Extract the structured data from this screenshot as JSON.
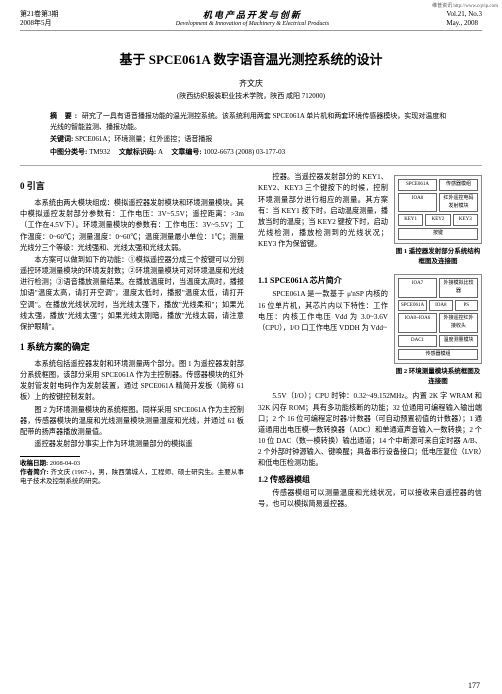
{
  "corner_text": "维普资讯 http://www.cqvip.com",
  "header": {
    "left_line1": "第21卷第3期",
    "left_line2": "2008年5月",
    "center_cn": "机电产品开发与创新",
    "center_en": "Development & Innovation of Machinery & Electrical Products",
    "right_line1": "Vol.21, No.3",
    "right_line2": "May., 2008"
  },
  "title": "基于 SPCE061A 数字语音温光测控系统的设计",
  "author": "齐文庆",
  "affiliation": "(陕西纺织服装职业技术学院，陕西 咸阳  712000)",
  "abstract": {
    "label": "摘 要:",
    "text": "研究了一具有语音播报功能的温光测控系统。该系统利用两套 SPCE061A 单片机和两套环境传感器模块，实现对温度和光线的智能监测、播报功能。"
  },
  "keywords": {
    "label": "关键词:",
    "text": "SPCE061A；环境测量；红外遥控；语音播报"
  },
  "clc": {
    "label": "中图分类号:",
    "value": "TM932",
    "mark_label": "文献标识码:",
    "mark": "A",
    "id_label": "文章编号:",
    "id": "1002-6673 (2008) 03-177-03"
  },
  "sec0": {
    "title": "0  引言",
    "p1": "本系统由两大模块组成：模拟遥控器发射模块和环境测量模块。其中模拟遥控发射部分参数有：工作电压：3V~5.5V；遥控距离：>3m（工作在4.5V下）。环境测量模块的参数有：工作电压：3V~5.5V；工作温度：0~60℃；测量温度：0~60℃；温度测量最小单位：1℃；测量光线分三个等级：光线强和、光线太强和光线太弱。",
    "p2": "本方案可以做到如下的功能：①模拟遥控器分成三个按键可以分别遥控环境测量模块的环境发射数；②环境测量模块可对环境温度和光线进行检测；③语音播放测量结果。在播放温度时，当温度太高时，播报加语\"温度太高，请打开空调\"，温度太低时，播报\"温度太低，请打开空调\"。在播放光线状况时，当光线太强下，播放\"光线柔和\"；如果光线太强，播放\"光线太强\"；如果光线太刚暗，播放\"光线太弱，请注意保护眼睛\"。"
  },
  "sec1": {
    "title": "1  系统方案的确定",
    "p1": "本系统包括遥控器发射和环境测量两个部分。图 1 为遥控器发射部分系统框图，该部分采用 SPCE061A 作为主控制器。传感器模块的红外发射管发射电码作为发射装置，通过 SPCE061A 精简开发板（简称 61 板）上的按键控制发射。",
    "p2": "图 2 为环境测量模块的系统框图。同样采用 SPCE061A 作为主控制器，传感器模块的温度和光线测量模块测量温度和光线，并通过 61 板配带的扬声器播放测量值。",
    "p3": "遥控器发射部分事实上作为环境测量部分的模拟遥"
  },
  "footnote": {
    "date_label": "收稿日期:",
    "date": "2008-04-03",
    "author_label": "作者简介:",
    "author_text": "齐文庆 (1967-)，男，陕西蒲城人，工程师、硕士研究生。主要从事电子技术及控制系统的研究。"
  },
  "rightcol": {
    "p1": "控器。当遥控器发射部分的 KEY1、KEY2、KEY3 三个键按下的时候，控制环境测量部分进行相应的测量。其方案有：当 KEY1 按下时，启动温度测量，播放当时的温度；当 KEY2 键按下时，启动光线检测，播放检测到的光线状况；KEY3 作为保留键。",
    "sub11_title": "1.1  SPCE061A 芯片简介",
    "sub11_p1": "SPCE061A 是一款基于 μ'nSP 内核的 16 位单片机，其芯片内以下特性：工作电压：内核工作电压 Vdd 为 3.0~3.6V（CPU），I/O 口工作电压 VDDH 为 Vdd~",
    "sub11_p2": "5.5V（I/O）；CPU 时钟：0.32~49.152MHz。内置 2K 字 WRAM 和 32K 闪存 ROM；具有多功能核断的功能；32 位通用可编程输入输出端口；2 个 16 位可编程定时器/计数器（可自动预置初值的计数器）；1 通道通用出电压模一数转换器（ADC）和单通道声音输入一数转换；2 个 10 位 DAC（数一模转换）输出通道；14 个中断源可来自定时器 A/B、2 个外部时钟源输入、键唤醒；具备串行设备接口；低电压复位（LVR）和低电压检测功能。",
    "sub12_title": "1.2  传感器模组",
    "sub12_p1": "传感器模组可以测量温度和光线状况，可以接收来自遥控器的信号，也可以模拟简易遥控器。"
  },
  "fig1": {
    "caption": "图 1  遥控器发射部分系统结构框图及连接图",
    "boxes": [
      "SPCE061A",
      "IOA8",
      "KEY1",
      "KEY2",
      "KEY3",
      "红外遥控电码发射模块",
      "按键",
      "传感器模组"
    ]
  },
  "fig2": {
    "caption": "图 2  环境测量模块系统框图及连接图",
    "boxes": [
      "IOA7",
      "IOA8",
      "IOA0~IOA6",
      "外接模拟比较器",
      "SPCE061A",
      "PS",
      "外接遥控红外接收头",
      "DAC1",
      "温度测量模块",
      "传感器模组"
    ]
  },
  "pagenum": "177"
}
